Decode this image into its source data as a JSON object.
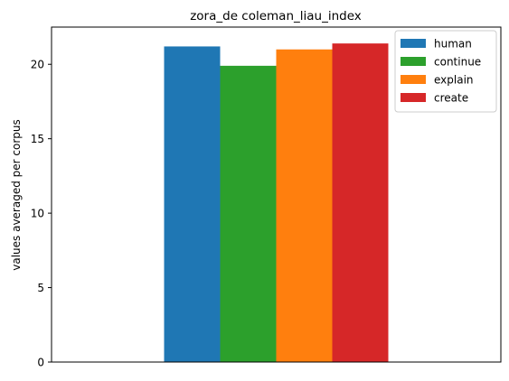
{
  "chart_data": {
    "type": "bar",
    "title": "zora_de coleman_liau_index",
    "xlabel": "",
    "ylabel": "values averaged per corpus",
    "categories": [
      ""
    ],
    "series": [
      {
        "name": "human",
        "values": [
          21.2
        ],
        "color": "#1f77b4"
      },
      {
        "name": "continue",
        "values": [
          19.9
        ],
        "color": "#2ca02c"
      },
      {
        "name": "explain",
        "values": [
          21.0
        ],
        "color": "#ff7f0e"
      },
      {
        "name": "create",
        "values": [
          21.4
        ],
        "color": "#d62728"
      }
    ],
    "ylim": [
      0,
      22.5
    ],
    "yticks": [
      0,
      5,
      10,
      15,
      20
    ],
    "grid": false,
    "legend_position": "top-right"
  }
}
